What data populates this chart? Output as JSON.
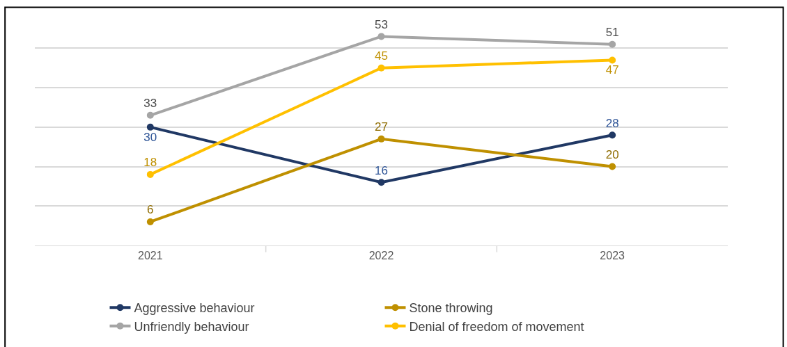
{
  "chart_data": {
    "type": "line",
    "categories": [
      "2021",
      "2022",
      "2023"
    ],
    "series": [
      {
        "name": "Aggressive behaviour",
        "color": "#203864",
        "values": [
          30,
          16,
          28
        ]
      },
      {
        "name": "Stone throwing",
        "color": "#bf9000",
        "values": [
          6,
          27,
          20
        ]
      },
      {
        "name": "Unfriendly behaviour",
        "color": "#a5a5a5",
        "values": [
          33,
          53,
          51
        ]
      },
      {
        "name": "Denial of freedom of movement",
        "color": "#ffc000",
        "values": [
          18,
          45,
          47
        ]
      }
    ],
    "grid": "y",
    "tick_labels": "x",
    "data_labels": true,
    "marker": "circle",
    "line_style": "solid",
    "legend": "bottom"
  }
}
